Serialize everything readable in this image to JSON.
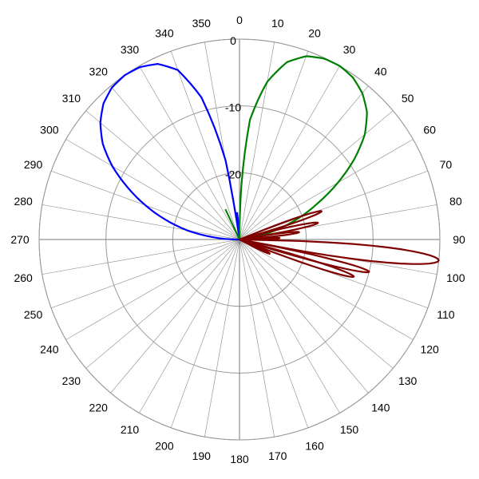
{
  "chart_data": {
    "type": "polar-line",
    "title": "",
    "angle_unit": "degrees",
    "angle_direction": "clockwise",
    "zero_at": "top",
    "angle_ticks": [
      0,
      10,
      20,
      30,
      40,
      50,
      60,
      70,
      80,
      90,
      100,
      110,
      120,
      130,
      140,
      150,
      160,
      170,
      180,
      190,
      200,
      210,
      220,
      230,
      240,
      250,
      260,
      270,
      280,
      290,
      300,
      310,
      320,
      330,
      340,
      350
    ],
    "radial_axis": {
      "min": -30,
      "max": 0,
      "ticks": [
        0,
        -10,
        -20
      ],
      "ring_values": [
        0,
        -10,
        -20
      ]
    },
    "colors": {
      "grid": "#999999",
      "blue": "#0000ff",
      "green": "#008000",
      "maroon": "#800000"
    },
    "series": [
      {
        "color": "#0000ff",
        "points": [
          [
            270,
            -29.5
          ],
          [
            275,
            -26
          ],
          [
            280,
            -22
          ],
          [
            285,
            -18.5
          ],
          [
            290,
            -15
          ],
          [
            295,
            -11.5
          ],
          [
            300,
            -8
          ],
          [
            305,
            -5
          ],
          [
            310,
            -2.8
          ],
          [
            315,
            -1.2
          ],
          [
            320,
            -0.3
          ],
          [
            325,
            0
          ],
          [
            330,
            -0.2
          ],
          [
            335,
            -1
          ],
          [
            340,
            -3
          ],
          [
            345,
            -8
          ],
          [
            350,
            -18
          ],
          [
            352,
            -30
          ],
          [
            355,
            -26
          ],
          [
            357,
            -30
          ]
        ]
      },
      {
        "color": "#008000",
        "points": [
          [
            0,
            -30
          ],
          [
            2,
            -22
          ],
          [
            5,
            -12
          ],
          [
            10,
            -6
          ],
          [
            15,
            -2.5
          ],
          [
            20,
            -0.8
          ],
          [
            25,
            -0.1
          ],
          [
            30,
            0
          ],
          [
            35,
            -0.4
          ],
          [
            40,
            -1.4
          ],
          [
            45,
            -3
          ],
          [
            50,
            -5.5
          ],
          [
            55,
            -9
          ],
          [
            60,
            -13
          ],
          [
            65,
            -17
          ],
          [
            70,
            -20.5
          ],
          [
            75,
            -24
          ],
          [
            80,
            -27.5
          ],
          [
            85,
            -29.5
          ],
          [
            90,
            -28
          ],
          [
            95,
            -30
          ],
          [
            330,
            -30
          ],
          [
            335,
            -25
          ],
          [
            338,
            -30
          ]
        ]
      },
      {
        "color": "#800000",
        "lobes": [
          {
            "center": 96,
            "width": 5,
            "peak": 0
          },
          {
            "center": 104,
            "width": 3,
            "peak": -10
          },
          {
            "center": 108,
            "width": 3,
            "peak": -12
          },
          {
            "center": 78,
            "width": 3,
            "peak": -18
          },
          {
            "center": 71,
            "width": 3,
            "peak": -17
          },
          {
            "center": 83,
            "width": 2.5,
            "peak": -21
          },
          {
            "center": 88,
            "width": 2.5,
            "peak": -24
          },
          {
            "center": 115,
            "width": 3,
            "peak": -25
          }
        ]
      }
    ]
  }
}
